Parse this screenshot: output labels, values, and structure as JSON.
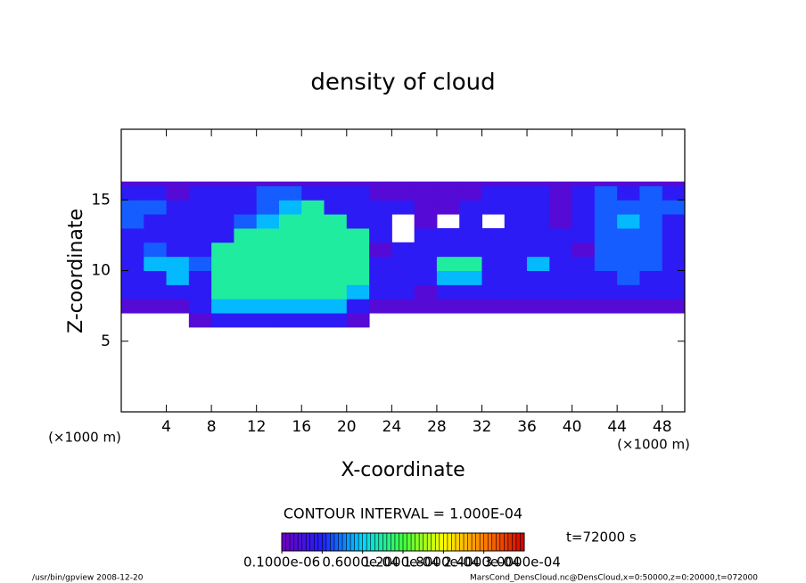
{
  "chart_data": {
    "type": "heatmap",
    "title": "density of cloud",
    "xlabel": "X-coordinate",
    "ylabel": "Z-coordinate",
    "x_unit": "(×1000 m)",
    "x_unit_right": "(×1000 m)",
    "xlim": [
      0,
      50
    ],
    "xticks": [
      4,
      8,
      12,
      16,
      20,
      24,
      28,
      32,
      36,
      40,
      44,
      48
    ],
    "ylim": [
      0,
      20
    ],
    "yticks": [
      5,
      10,
      15
    ],
    "x_bins": [
      0,
      2,
      4,
      6,
      8,
      10,
      12,
      14,
      16,
      18,
      20,
      22,
      24,
      26,
      28,
      30,
      32,
      34,
      36,
      38,
      40,
      42,
      44,
      46,
      48,
      50
    ],
    "z_bins": [
      6,
      7,
      8,
      9,
      10,
      11,
      12,
      13,
      14,
      15,
      16,
      16.3
    ],
    "values": [
      [
        null,
        null,
        null,
        2e-05,
        5e-05,
        5e-05,
        5e-05,
        5e-05,
        5e-05,
        5e-05,
        2e-05,
        null,
        null,
        null,
        null,
        null,
        null,
        null,
        null,
        null,
        null,
        null,
        null,
        null,
        null
      ],
      [
        2e-05,
        2e-05,
        2e-05,
        5e-05,
        0.00011,
        0.00011,
        0.00011,
        0.00011,
        0.00011,
        0.00011,
        5e-05,
        2e-05,
        2e-05,
        2e-05,
        2e-05,
        2e-05,
        2e-05,
        2e-05,
        2e-05,
        2e-05,
        2e-05,
        2e-05,
        2e-05,
        2e-05,
        2e-05
      ],
      [
        5e-05,
        5e-05,
        5e-05,
        5e-05,
        0.00015,
        0.00015,
        0.00015,
        0.00015,
        0.00015,
        0.00015,
        0.00011,
        5e-05,
        5e-05,
        2e-05,
        5e-05,
        5e-05,
        5e-05,
        5e-05,
        5e-05,
        5e-05,
        5e-05,
        5e-05,
        5e-05,
        5e-05,
        5e-05
      ],
      [
        5e-05,
        5e-05,
        0.00011,
        5e-05,
        0.00015,
        0.00015,
        0.00015,
        0.00015,
        0.00015,
        0.00015,
        0.00015,
        5e-05,
        5e-05,
        5e-05,
        0.00011,
        0.00011,
        5e-05,
        5e-05,
        5e-05,
        5e-05,
        5e-05,
        5e-05,
        8e-05,
        5e-05,
        5e-05
      ],
      [
        5e-05,
        0.00011,
        0.00011,
        8e-05,
        0.00015,
        0.00015,
        0.00015,
        0.00015,
        0.00015,
        0.00015,
        0.00015,
        5e-05,
        5e-05,
        5e-05,
        0.00015,
        0.00015,
        5e-05,
        5e-05,
        0.00011,
        5e-05,
        5e-05,
        8e-05,
        8e-05,
        8e-05,
        5e-05
      ],
      [
        5e-05,
        8e-05,
        5e-05,
        5e-05,
        0.00015,
        0.00015,
        0.00015,
        0.00015,
        0.00015,
        0.00015,
        0.00015,
        2e-05,
        5e-05,
        5e-05,
        5e-05,
        5e-05,
        5e-05,
        5e-05,
        5e-05,
        5e-05,
        2e-05,
        8e-05,
        8e-05,
        8e-05,
        5e-05
      ],
      [
        5e-05,
        5e-05,
        5e-05,
        5e-05,
        5e-05,
        0.00015,
        0.00015,
        0.00015,
        0.00015,
        0.00015,
        0.00015,
        5e-05,
        null,
        5e-05,
        5e-05,
        5e-05,
        5e-05,
        5e-05,
        5e-05,
        5e-05,
        5e-05,
        8e-05,
        8e-05,
        8e-05,
        5e-05
      ],
      [
        8e-05,
        5e-05,
        5e-05,
        5e-05,
        5e-05,
        8e-05,
        0.00011,
        0.00015,
        0.00015,
        0.00015,
        5e-05,
        5e-05,
        null,
        2e-05,
        null,
        5e-05,
        null,
        5e-05,
        5e-05,
        2e-05,
        5e-05,
        8e-05,
        0.00011,
        8e-05,
        5e-05
      ],
      [
        8e-05,
        8e-05,
        5e-05,
        5e-05,
        5e-05,
        5e-05,
        8e-05,
        0.00011,
        0.00015,
        5e-05,
        5e-05,
        5e-05,
        5e-05,
        2e-05,
        2e-05,
        5e-05,
        5e-05,
        5e-05,
        5e-05,
        2e-05,
        5e-05,
        8e-05,
        8e-05,
        8e-05,
        8e-05
      ],
      [
        5e-05,
        5e-05,
        2e-05,
        5e-05,
        5e-05,
        5e-05,
        8e-05,
        8e-05,
        5e-05,
        5e-05,
        5e-05,
        2e-05,
        2e-05,
        2e-05,
        2e-05,
        2e-05,
        5e-05,
        5e-05,
        5e-05,
        2e-05,
        5e-05,
        8e-05,
        5e-05,
        8e-05,
        5e-05
      ],
      [
        2e-05,
        2e-05,
        2e-05,
        2e-05,
        2e-05,
        2e-05,
        2e-05,
        2e-05,
        2e-05,
        2e-05,
        2e-05,
        2e-05,
        2e-05,
        2e-05,
        2e-05,
        2e-05,
        2e-05,
        2e-05,
        2e-05,
        2e-05,
        2e-05,
        2e-05,
        2e-05,
        2e-05,
        2e-05
      ]
    ],
    "clim": [
      0,
      0.00036
    ],
    "colormap": [
      "#7000c0",
      "#2020ff",
      "#00d8ff",
      "#40ff40",
      "#ffff00",
      "#ff8000",
      "#d00000"
    ],
    "colorbar_ticks": [
      {
        "value": 1e-07,
        "label": "0.1000e-06"
      },
      {
        "value": 6e-05,
        "label": "0.6000e-04"
      },
      {
        "value": 0.00012,
        "label": "1.2000e-04"
      },
      {
        "value": 0.00018,
        "label": "1.8000e-04"
      },
      {
        "value": 0.00024,
        "label": "2.4000e-04"
      },
      {
        "value": 0.0003,
        "label": "3.0000e-04"
      }
    ],
    "contour_note": "CONTOUR INTERVAL = 1.000E-04",
    "time_label": "t=72000 s",
    "footer_left": "/usr/bin/gpview  2008-12-20",
    "footer_right": "MarsCond_DensCloud.nc@DensCloud,x=0:50000,z=0:20000,t=072000"
  }
}
